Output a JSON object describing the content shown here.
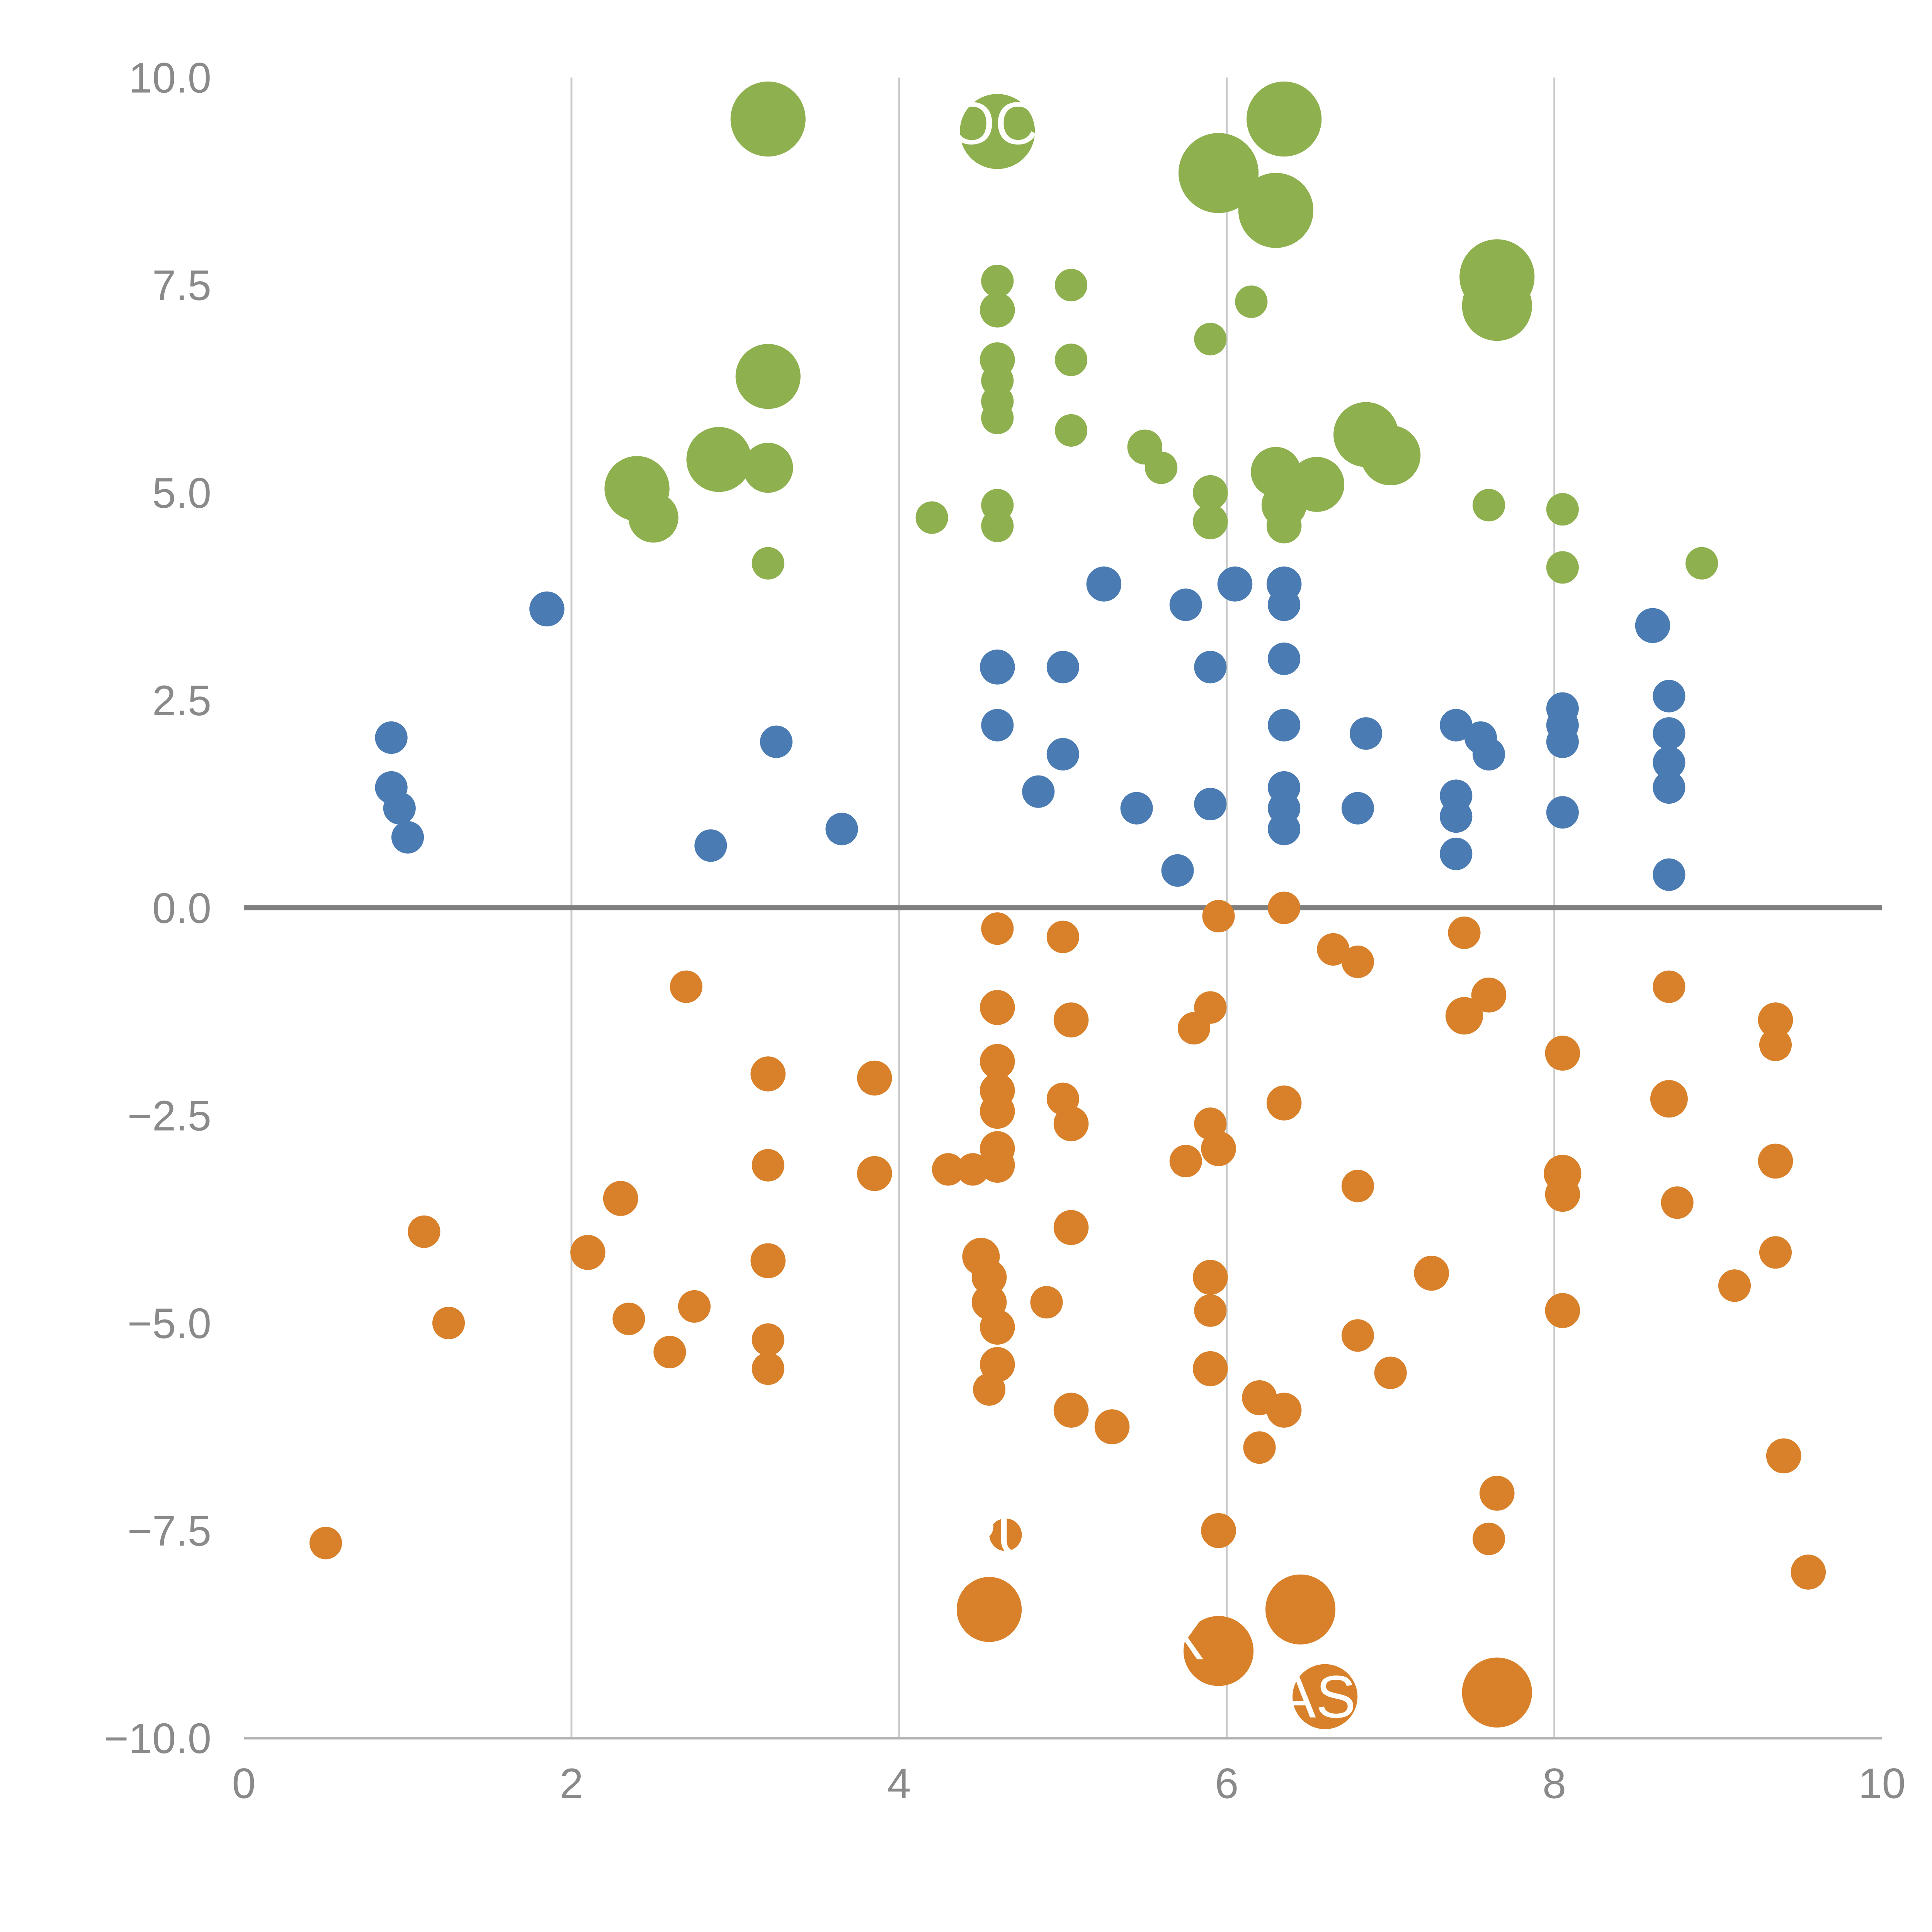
{
  "chart_data": {
    "type": "scatter",
    "title": "",
    "xlabel": "",
    "ylabel": "",
    "xlim": [
      0,
      10
    ],
    "ylim": [
      -10,
      10
    ],
    "grid": "vertical-only",
    "grid_x": [
      2,
      4,
      6,
      8
    ],
    "zero_line_y": 0,
    "x_ticks": {
      "values": [
        0,
        2,
        4,
        6,
        8,
        10
      ],
      "labels": [
        "0",
        "2",
        "4",
        "6",
        "8",
        "10"
      ]
    },
    "y_ticks": {
      "values": [
        10,
        7.5,
        5,
        2.5,
        0,
        -2.5,
        -5,
        -7.5,
        -10
      ],
      "labels": [
        "10.0",
        "7.5",
        "5.0",
        "2.5",
        "0.0",
        "−2.5",
        "−5.0",
        "−7.5",
        "−10.0"
      ]
    },
    "legend": "none",
    "colors": {
      "green": "#8eb04e",
      "blue": "#4a7bb3",
      "orange": "#d9812a",
      "zero_line": "#7f7f7f",
      "gridline": "#c9c9c9",
      "axis": "#b3b3b3",
      "tick_text": "#8a8a8a",
      "annotation": "#ffffff"
    },
    "series": [
      {
        "name": "green",
        "color": "#8eb04e",
        "points": [
          [
            3.2,
            9.5,
            30
          ],
          [
            4.6,
            9.35,
            30
          ],
          [
            6.35,
            9.5,
            30
          ],
          [
            5.95,
            8.85,
            32
          ],
          [
            6.3,
            8.4,
            30
          ],
          [
            7.65,
            7.6,
            30
          ],
          [
            7.65,
            7.25,
            28
          ],
          [
            4.6,
            7.55,
            13
          ],
          [
            5.05,
            7.5,
            13
          ],
          [
            4.6,
            7.2,
            14
          ],
          [
            6.15,
            7.3,
            13
          ],
          [
            5.9,
            6.85,
            13
          ],
          [
            4.6,
            6.6,
            14
          ],
          [
            5.05,
            6.6,
            13
          ],
          [
            4.6,
            6.35,
            13
          ],
          [
            3.2,
            6.4,
            26
          ],
          [
            4.6,
            6.1,
            13
          ],
          [
            4.6,
            5.9,
            13
          ],
          [
            5.05,
            5.75,
            13
          ],
          [
            5.5,
            5.55,
            14
          ],
          [
            5.6,
            5.3,
            13
          ],
          [
            6.85,
            5.7,
            26
          ],
          [
            7.0,
            5.45,
            24
          ],
          [
            2.9,
            5.4,
            26
          ],
          [
            3.2,
            5.3,
            20
          ],
          [
            2.4,
            5.05,
            26
          ],
          [
            2.5,
            4.7,
            20
          ],
          [
            6.3,
            5.25,
            20
          ],
          [
            6.55,
            5.1,
            22
          ],
          [
            6.35,
            4.85,
            18
          ],
          [
            5.9,
            5.0,
            14
          ],
          [
            5.9,
            4.65,
            14
          ],
          [
            6.35,
            4.6,
            14
          ],
          [
            4.2,
            4.7,
            13
          ],
          [
            4.6,
            4.85,
            13
          ],
          [
            4.6,
            4.6,
            13
          ],
          [
            7.6,
            4.85,
            13
          ],
          [
            8.05,
            4.8,
            13
          ],
          [
            3.2,
            4.15,
            13
          ],
          [
            8.05,
            4.1,
            13
          ],
          [
            8.9,
            4.15,
            13
          ]
        ]
      },
      {
        "name": "blue",
        "color": "#4a7bb3",
        "points": [
          [
            1.85,
            3.6,
            14
          ],
          [
            5.25,
            3.9,
            14
          ],
          [
            6.05,
            3.9,
            14
          ],
          [
            6.35,
            3.9,
            14
          ],
          [
            5.75,
            3.65,
            13
          ],
          [
            6.35,
            3.65,
            13
          ],
          [
            8.6,
            3.4,
            14
          ],
          [
            4.6,
            2.9,
            14
          ],
          [
            5.0,
            2.9,
            13
          ],
          [
            5.9,
            2.9,
            13
          ],
          [
            6.35,
            3.0,
            13
          ],
          [
            4.6,
            2.2,
            13
          ],
          [
            6.35,
            2.2,
            13
          ],
          [
            6.85,
            2.1,
            13
          ],
          [
            7.4,
            2.2,
            13
          ],
          [
            7.55,
            2.05,
            13
          ],
          [
            7.6,
            1.85,
            13
          ],
          [
            8.05,
            2.4,
            13
          ],
          [
            8.05,
            2.2,
            13
          ],
          [
            8.05,
            2.0,
            13
          ],
          [
            8.7,
            2.55,
            13
          ],
          [
            8.7,
            2.1,
            13
          ],
          [
            8.7,
            1.75,
            13
          ],
          [
            8.7,
            1.45,
            13
          ],
          [
            0.9,
            2.05,
            13
          ],
          [
            0.9,
            1.45,
            13
          ],
          [
            0.95,
            1.2,
            13
          ],
          [
            1.0,
            0.85,
            13
          ],
          [
            3.25,
            2.0,
            13
          ],
          [
            4.85,
            1.4,
            13
          ],
          [
            5.0,
            1.85,
            13
          ],
          [
            5.45,
            1.2,
            13
          ],
          [
            5.9,
            1.25,
            13
          ],
          [
            6.35,
            1.45,
            13
          ],
          [
            6.35,
            1.2,
            13
          ],
          [
            6.35,
            0.95,
            13
          ],
          [
            6.8,
            1.2,
            13
          ],
          [
            7.4,
            1.35,
            13
          ],
          [
            7.4,
            1.1,
            13
          ],
          [
            7.4,
            0.65,
            13
          ],
          [
            8.05,
            1.15,
            13
          ],
          [
            2.85,
            0.75,
            13
          ],
          [
            3.65,
            0.95,
            13
          ],
          [
            5.7,
            0.45,
            13
          ],
          [
            8.7,
            0.4,
            13
          ]
        ]
      },
      {
        "name": "orange",
        "color": "#d9812a",
        "points": [
          [
            5.95,
            -0.1,
            13
          ],
          [
            6.35,
            0.0,
            13
          ],
          [
            4.6,
            -0.25,
            13
          ],
          [
            5.0,
            -0.35,
            13
          ],
          [
            6.65,
            -0.5,
            13
          ],
          [
            6.8,
            -0.65,
            13
          ],
          [
            7.45,
            -0.3,
            13
          ],
          [
            2.7,
            -0.95,
            13
          ],
          [
            8.7,
            -0.95,
            13
          ],
          [
            4.6,
            -1.2,
            14
          ],
          [
            5.05,
            -1.35,
            14
          ],
          [
            5.9,
            -1.2,
            13
          ],
          [
            5.8,
            -1.45,
            13
          ],
          [
            7.45,
            -1.3,
            15
          ],
          [
            7.6,
            -1.05,
            14
          ],
          [
            9.35,
            -1.35,
            14
          ],
          [
            9.35,
            -1.65,
            13
          ],
          [
            3.2,
            -2.0,
            14
          ],
          [
            3.85,
            -2.05,
            14
          ],
          [
            4.6,
            -1.85,
            14
          ],
          [
            4.6,
            -2.2,
            14
          ],
          [
            4.6,
            -2.45,
            14
          ],
          [
            5.0,
            -2.3,
            13
          ],
          [
            5.05,
            -2.6,
            14
          ],
          [
            6.35,
            -2.35,
            14
          ],
          [
            8.05,
            -1.75,
            14
          ],
          [
            8.7,
            -2.3,
            15
          ],
          [
            5.9,
            -2.6,
            13
          ],
          [
            5.95,
            -2.9,
            14
          ],
          [
            4.6,
            -2.9,
            14
          ],
          [
            4.6,
            -3.1,
            14
          ],
          [
            4.3,
            -3.15,
            13
          ],
          [
            4.45,
            -3.15,
            13
          ],
          [
            5.75,
            -3.05,
            13
          ],
          [
            3.85,
            -3.2,
            14
          ],
          [
            3.2,
            -3.1,
            13
          ],
          [
            2.3,
            -3.5,
            14
          ],
          [
            6.8,
            -3.35,
            13
          ],
          [
            8.05,
            -3.2,
            15
          ],
          [
            8.05,
            -3.45,
            14
          ],
          [
            9.35,
            -3.05,
            14
          ],
          [
            1.1,
            -3.9,
            13
          ],
          [
            5.05,
            -3.85,
            14
          ],
          [
            3.2,
            -4.25,
            14
          ],
          [
            2.1,
            -4.15,
            14
          ],
          [
            4.5,
            -4.2,
            15
          ],
          [
            4.55,
            -4.45,
            14
          ],
          [
            8.75,
            -3.55,
            13
          ],
          [
            9.1,
            -4.55,
            13
          ],
          [
            9.35,
            -4.15,
            13
          ],
          [
            1.25,
            -5.0,
            13
          ],
          [
            2.35,
            -4.95,
            13
          ],
          [
            2.75,
            -4.8,
            13
          ],
          [
            4.55,
            -4.75,
            14
          ],
          [
            4.6,
            -5.05,
            14
          ],
          [
            4.9,
            -4.75,
            13
          ],
          [
            5.9,
            -4.45,
            14
          ],
          [
            5.9,
            -4.85,
            13
          ],
          [
            7.25,
            -4.4,
            14
          ],
          [
            6.8,
            -5.15,
            13
          ],
          [
            8.05,
            -4.85,
            14
          ],
          [
            2.6,
            -5.35,
            13
          ],
          [
            3.2,
            -5.2,
            13
          ],
          [
            3.2,
            -5.55,
            13
          ],
          [
            4.6,
            -5.5,
            14
          ],
          [
            4.55,
            -5.8,
            13
          ],
          [
            5.9,
            -5.55,
            14
          ],
          [
            7.0,
            -5.6,
            13
          ],
          [
            6.2,
            -5.9,
            14
          ],
          [
            6.35,
            -6.05,
            14
          ],
          [
            5.05,
            -6.05,
            14
          ],
          [
            5.3,
            -6.25,
            14
          ],
          [
            6.2,
            -6.5,
            13
          ],
          [
            9.4,
            -6.6,
            14
          ],
          [
            7.65,
            -7.05,
            14
          ],
          [
            7.6,
            -7.6,
            13
          ],
          [
            5.95,
            -7.5,
            14
          ],
          [
            0.5,
            -7.65,
            13
          ],
          [
            4.65,
            -7.55,
            13
          ],
          [
            4.55,
            -8.45,
            26
          ],
          [
            9.55,
            -8.0,
            14
          ],
          [
            6.45,
            -8.45,
            28
          ],
          [
            5.95,
            -8.95,
            28
          ],
          [
            6.6,
            -9.5,
            26
          ],
          [
            7.65,
            -9.45,
            28
          ]
        ]
      }
    ],
    "annotations": [
      {
        "text": "OCEA",
        "x": 4.3,
        "y": 9.2
      },
      {
        "text": "PU",
        "x": 4.35,
        "y": -7.8
      },
      {
        "text": "X",
        "x": 5.62,
        "y": -9.05
      },
      {
        "text": "AS",
        "x": 6.3,
        "y": -9.75
      }
    ]
  }
}
